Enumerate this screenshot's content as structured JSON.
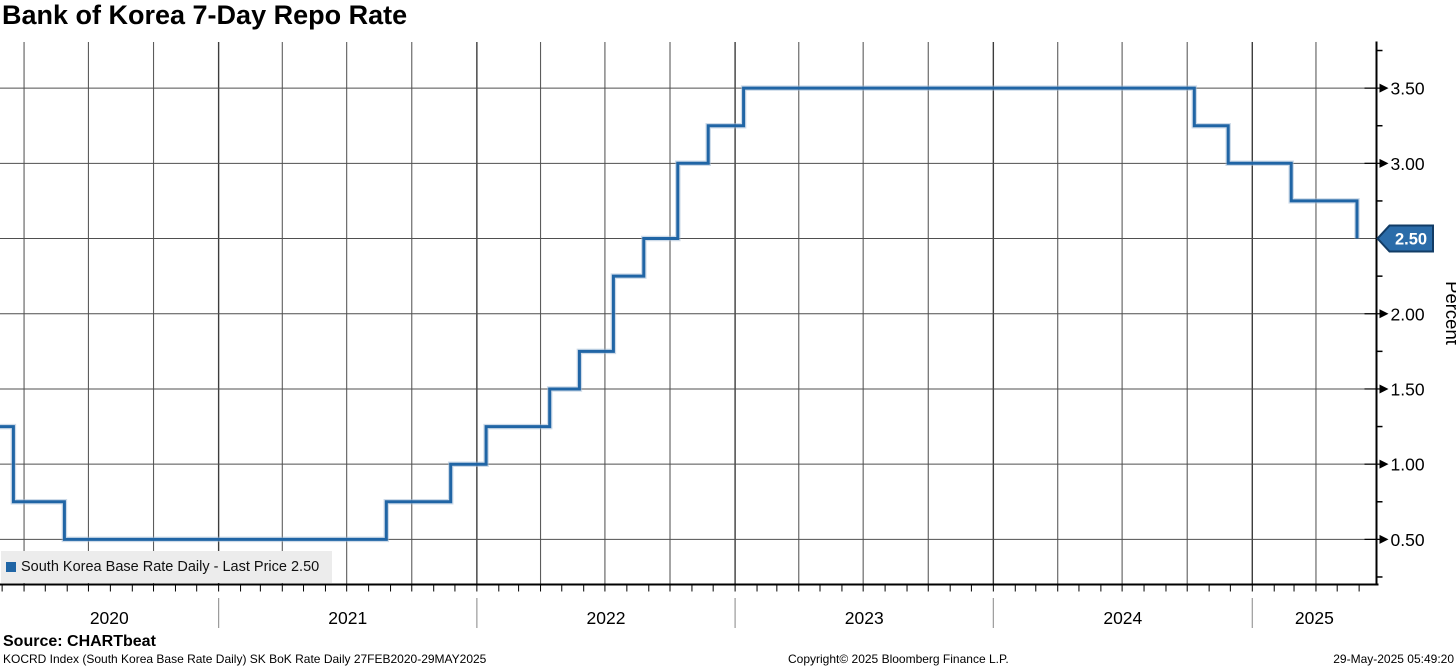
{
  "title": "Bank of Korea 7-Day Repo Rate",
  "legend": {
    "marker_color": "#2065a5",
    "label": "South Korea Base Rate Daily - Last Price 2.50"
  },
  "y_axis": {
    "label": "Percent",
    "tick_labels": [
      "0.50",
      "1.00",
      "1.50",
      "2.00",
      "2.50",
      "3.00",
      "3.50"
    ],
    "minor_step": 0.25
  },
  "x_axis": {
    "year_labels": [
      "2020",
      "2021",
      "2022",
      "2023",
      "2024",
      "2025"
    ]
  },
  "last_price_badge": {
    "value": "2.50",
    "fill": "#2b6ca9",
    "border": "#123c66",
    "text_color": "#ffffff"
  },
  "footer": {
    "source": "Source: CHARTbeat",
    "ticker_line": "KOCRD Index (South Korea Base Rate Daily) SK BoK Rate  Daily 27FEB2020-29MAY2025",
    "copyright": "Copyright© 2025 Bloomberg Finance L.P.",
    "timestamp": "29-May-2025 05:49:20"
  },
  "colors": {
    "line": "#2065a5",
    "line_halo": "#9db8d4",
    "grid": "#5c5c5c",
    "grid_year": "#3c3c3c",
    "axis": "#000000",
    "legend_bg": "#ececec",
    "year_separator": "#9a9a9a"
  },
  "chart_data": {
    "type": "step-line",
    "title": "Bank of Korea 7-Day Repo Rate",
    "ylabel": "Percent",
    "ylim": [
      0.2,
      3.8
    ],
    "y_major_ticks": [
      0.5,
      1.0,
      1.5,
      2.0,
      2.5,
      3.0,
      3.5
    ],
    "y_minor_step": 0.25,
    "x_range": [
      "2020-02-27",
      "2025-05-29"
    ],
    "x_gridlines": "quarterly",
    "x_minor_ticks": "monthly",
    "legend_position": "bottom-left",
    "series": [
      {
        "name": "South Korea Base Rate Daily",
        "last_price": 2.5,
        "steps": [
          {
            "date": "2020-02-27",
            "rate": 1.25
          },
          {
            "date": "2020-03-17",
            "rate": 0.75
          },
          {
            "date": "2020-05-28",
            "rate": 0.5
          },
          {
            "date": "2021-08-26",
            "rate": 0.75
          },
          {
            "date": "2021-11-25",
            "rate": 1.0
          },
          {
            "date": "2022-01-14",
            "rate": 1.25
          },
          {
            "date": "2022-04-14",
            "rate": 1.5
          },
          {
            "date": "2022-05-26",
            "rate": 1.75
          },
          {
            "date": "2022-07-13",
            "rate": 2.25
          },
          {
            "date": "2022-08-25",
            "rate": 2.5
          },
          {
            "date": "2022-10-12",
            "rate": 3.0
          },
          {
            "date": "2022-11-24",
            "rate": 3.25
          },
          {
            "date": "2023-01-13",
            "rate": 3.5
          },
          {
            "date": "2024-10-11",
            "rate": 3.25
          },
          {
            "date": "2024-11-28",
            "rate": 3.0
          },
          {
            "date": "2025-02-25",
            "rate": 2.75
          },
          {
            "date": "2025-05-29",
            "rate": 2.5
          }
        ]
      }
    ]
  }
}
